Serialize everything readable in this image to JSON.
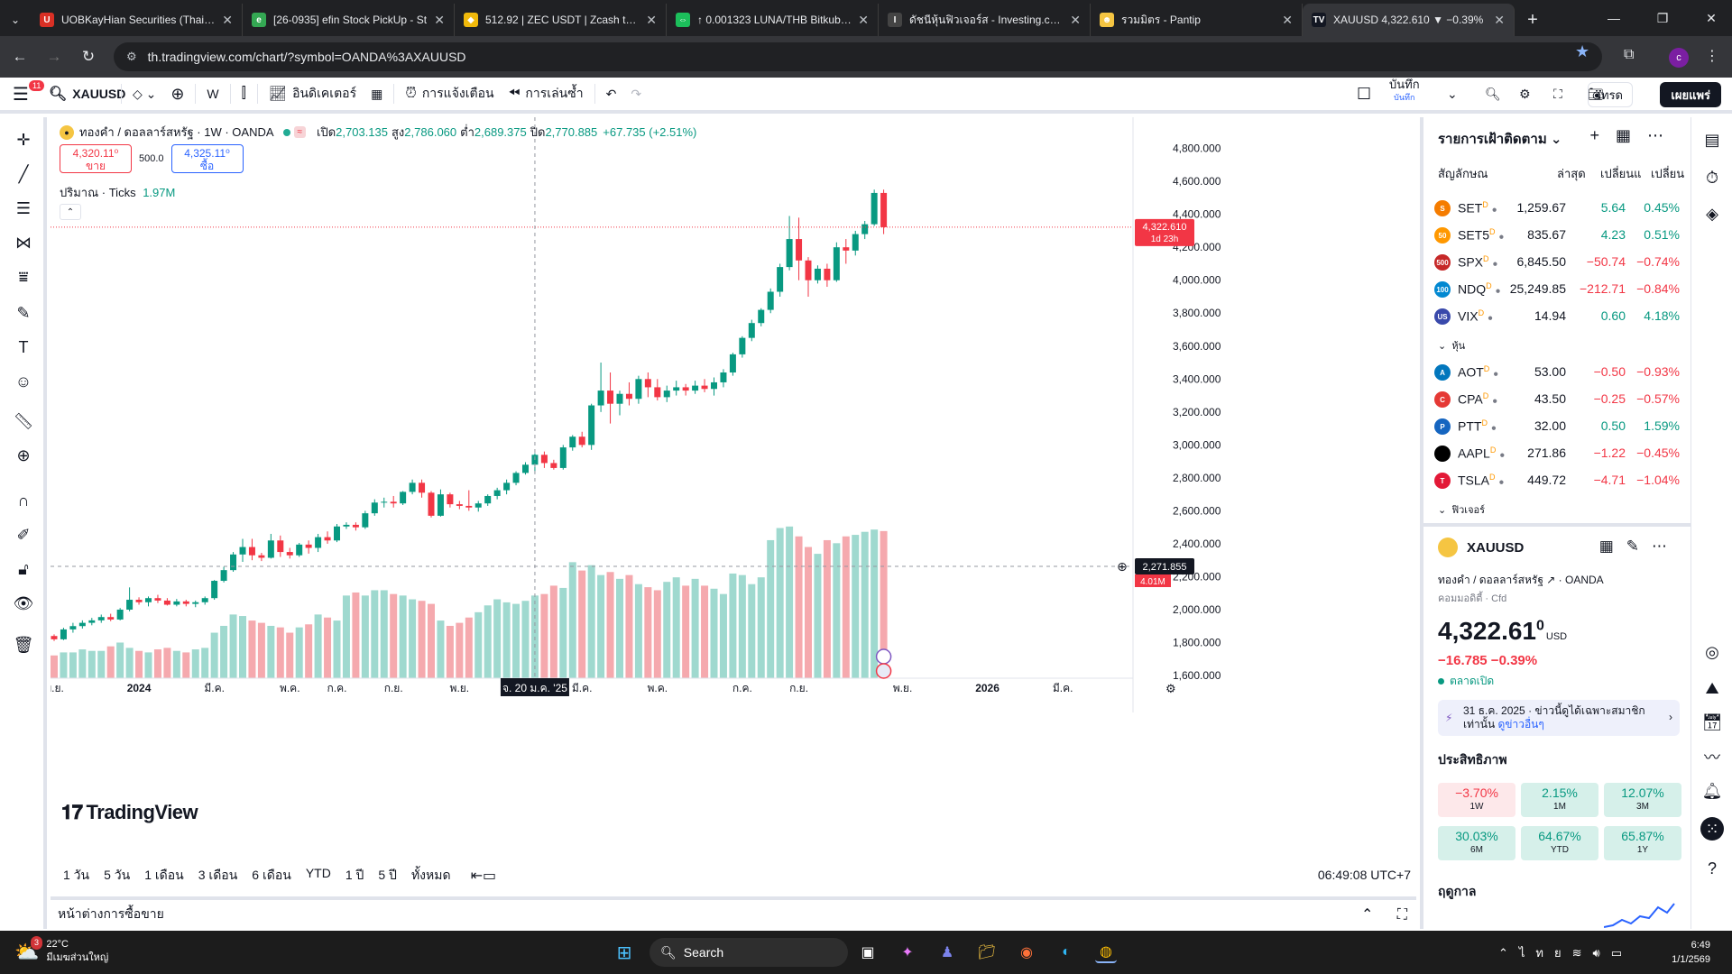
{
  "browser": {
    "tabs": [
      {
        "title": "UOBKayHian Securities (Thailan",
        "color": "#d93025",
        "icon": "uob-icon",
        "glyph": "U"
      },
      {
        "title": "[26-0935] efin Stock PickUp - St",
        "color": "#34a853",
        "icon": "efin-icon",
        "glyph": "e"
      },
      {
        "title": "512.92 | ZEC USDT | Zcash to US",
        "color": "#f0b90b",
        "icon": "binance-icon",
        "glyph": "◆"
      },
      {
        "title": "↑ 0.001323 LUNA/THB Bitkub.co",
        "color": "#1cbf5b",
        "icon": "bitkub-icon",
        "glyph": "⇔"
      },
      {
        "title": "ดัชนีหุ้นฟิวเจอร์ส - Investing.com",
        "color": "#444444",
        "icon": "investing-icon",
        "glyph": "I"
      },
      {
        "title": "รวมมิตร - Pantip",
        "color": "#f5c542",
        "icon": "pantip-icon",
        "glyph": "☻"
      },
      {
        "title": "XAUUSD 4,322.610 ▼ −0.39%",
        "color": "#131722",
        "icon": "tradingview-icon",
        "glyph": "TV",
        "active": true
      }
    ],
    "url": "th.tradingview.com/chart/?symbol=OANDA%3AXAUUSD",
    "profile_initial": "c"
  },
  "toolbar": {
    "menu_badge": "11",
    "symbol": "XAUUSD",
    "interval": "W",
    "indicators": "อินดิเคเตอร์",
    "alerts": "การแจ้งเตือน",
    "replay": "การเล่นซ้ำ",
    "save": "บันทึก",
    "save_sub": "บันทึก",
    "trade": "เทรด",
    "publish": "เผยแพร่"
  },
  "legend": {
    "title": "ทองคำ / ดอลลาร์สหรัฐ · 1W · OANDA",
    "open_label": "เปิด",
    "open": "2,703.135",
    "high_label": "สูง",
    "high": "2,786.060",
    "low_label": "ต่ำ",
    "low": "2,689.375",
    "close_label": "ปิด",
    "close": "2,770.885",
    "change": "+67.735 (+2.51%)",
    "sell_price": "4,320.11⁰",
    "sell_label": "ขาย",
    "qty": "500.0",
    "buy_price": "4,325.11⁰",
    "buy_label": "ซื้อ",
    "volume_label": "ปริมาณ · Ticks",
    "volume_value": "1.97M"
  },
  "price_tags": {
    "last": "4,322.610",
    "countdown": "1d 23h",
    "crosshair": "2,271.855",
    "volume": "4.01M"
  },
  "chart_data": {
    "type": "candlestick",
    "symbol": "XAUUSD",
    "interval": "1W",
    "ylim": [
      1540,
      4880
    ],
    "y_ticks": [
      1600,
      1800,
      2000,
      2200,
      2400,
      2600,
      2800,
      3000,
      3200,
      3400,
      3600,
      3800,
      4000,
      4200,
      4400,
      4600,
      4800
    ],
    "y_tick_labels": [
      "1,600.000",
      "1,800.000",
      "2,000.000",
      "2,200.000",
      "2,400.000",
      "2,600.000",
      "2,800.000",
      "3,000.000",
      "3,200.000",
      "3,400.000",
      "3,600.000",
      "3,800.000",
      "4,000.000",
      "4,200.000",
      "4,400.000",
      "4,600.000",
      "4,800.000"
    ],
    "x_labels": [
      {
        "label": "พ.ย.",
        "bar": 0
      },
      {
        "label": "2024",
        "bar": 9
      },
      {
        "label": "มี.ค.",
        "bar": 17
      },
      {
        "label": "พ.ค.",
        "bar": 25
      },
      {
        "label": "ก.ค.",
        "bar": 30
      },
      {
        "label": "ก.ย.",
        "bar": 36
      },
      {
        "label": "พ.ย.",
        "bar": 43
      },
      {
        "label": "จ. 20 ม.ค. '25",
        "bar": 51,
        "highlight": true
      },
      {
        "label": "มี.ค.",
        "bar": 56
      },
      {
        "label": "พ.ค.",
        "bar": 64
      },
      {
        "label": "ก.ค.",
        "bar": 73
      },
      {
        "label": "ก.ย.",
        "bar": 79
      },
      {
        "label": "พ.ย.",
        "bar": 90
      },
      {
        "label": "2026",
        "bar": 99
      },
      {
        "label": "มี.ค.",
        "bar": 107
      }
    ],
    "candles": [
      [
        1840,
        1850,
        1810,
        1820
      ],
      [
        1820,
        1890,
        1815,
        1880
      ],
      [
        1880,
        1920,
        1860,
        1900
      ],
      [
        1900,
        1935,
        1885,
        1920
      ],
      [
        1920,
        1950,
        1905,
        1935
      ],
      [
        1935,
        1970,
        1920,
        1955
      ],
      [
        1955,
        1975,
        1930,
        1940
      ],
      [
        1940,
        2010,
        1935,
        2000
      ],
      [
        2000,
        2135,
        1990,
        2060
      ],
      [
        2060,
        2075,
        2030,
        2045
      ],
      [
        2045,
        2080,
        2020,
        2070
      ],
      [
        2070,
        2090,
        2040,
        2055
      ],
      [
        2055,
        2070,
        2025,
        2030
      ],
      [
        2030,
        2065,
        2020,
        2050
      ],
      [
        2050,
        2060,
        2020,
        2035
      ],
      [
        2035,
        2055,
        2015,
        2045
      ],
      [
        2045,
        2080,
        2030,
        2070
      ],
      [
        2070,
        2180,
        2060,
        2175
      ],
      [
        2175,
        2260,
        2165,
        2240
      ],
      [
        2240,
        2350,
        2230,
        2335
      ],
      [
        2335,
        2430,
        2290,
        2380
      ],
      [
        2380,
        2430,
        2300,
        2330
      ],
      [
        2330,
        2345,
        2295,
        2315
      ],
      [
        2315,
        2460,
        2310,
        2420
      ],
      [
        2420,
        2450,
        2320,
        2350
      ],
      [
        2350,
        2375,
        2310,
        2330
      ],
      [
        2330,
        2405,
        2320,
        2395
      ],
      [
        2395,
        2420,
        2340,
        2375
      ],
      [
        2375,
        2460,
        2350,
        2440
      ],
      [
        2440,
        2475,
        2400,
        2420
      ],
      [
        2420,
        2520,
        2410,
        2505
      ],
      [
        2505,
        2530,
        2490,
        2515
      ],
      [
        2515,
        2530,
        2480,
        2500
      ],
      [
        2500,
        2600,
        2490,
        2585
      ],
      [
        2585,
        2670,
        2570,
        2650
      ],
      [
        2650,
        2680,
        2620,
        2655
      ],
      [
        2655,
        2690,
        2620,
        2645
      ],
      [
        2645,
        2720,
        2635,
        2715
      ],
      [
        2715,
        2790,
        2700,
        2770
      ],
      [
        2770,
        2790,
        2680,
        2710
      ],
      [
        2710,
        2720,
        2560,
        2570
      ],
      [
        2570,
        2730,
        2565,
        2700
      ],
      [
        2700,
        2710,
        2620,
        2640
      ],
      [
        2640,
        2660,
        2610,
        2630
      ],
      [
        2630,
        2725,
        2600,
        2620
      ],
      [
        2620,
        2660,
        2595,
        2645
      ],
      [
        2645,
        2700,
        2630,
        2690
      ],
      [
        2690,
        2740,
        2670,
        2725
      ],
      [
        2725,
        2790,
        2700,
        2770
      ],
      [
        2770,
        2840,
        2755,
        2830
      ],
      [
        2830,
        2895,
        2820,
        2880
      ],
      [
        2880,
        2950,
        2830,
        2940
      ],
      [
        2940,
        2960,
        2860,
        2890
      ],
      [
        2890,
        2910,
        2850,
        2860
      ],
      [
        2860,
        3000,
        2850,
        2985
      ],
      [
        2985,
        3060,
        2965,
        3050
      ],
      [
        3050,
        3080,
        2985,
        3000
      ],
      [
        3000,
        3250,
        2970,
        3240
      ],
      [
        3240,
        3500,
        3200,
        3330
      ],
      [
        3330,
        3440,
        3130,
        3250
      ],
      [
        3250,
        3330,
        3180,
        3310
      ],
      [
        3310,
        3380,
        3240,
        3280
      ],
      [
        3280,
        3420,
        3250,
        3400
      ],
      [
        3400,
        3440,
        3290,
        3350
      ],
      [
        3350,
        3400,
        3270,
        3290
      ],
      [
        3290,
        3360,
        3260,
        3330
      ],
      [
        3330,
        3390,
        3300,
        3350
      ],
      [
        3350,
        3370,
        3300,
        3330
      ],
      [
        3330,
        3390,
        3310,
        3360
      ],
      [
        3360,
        3400,
        3320,
        3340
      ],
      [
        3340,
        3410,
        3300,
        3380
      ],
      [
        3380,
        3460,
        3350,
        3440
      ],
      [
        3440,
        3560,
        3420,
        3550
      ],
      [
        3550,
        3660,
        3530,
        3650
      ],
      [
        3650,
        3760,
        3630,
        3740
      ],
      [
        3740,
        3830,
        3720,
        3820
      ],
      [
        3820,
        3950,
        3800,
        3930
      ],
      [
        3930,
        4100,
        3900,
        4080
      ],
      [
        4080,
        4390,
        4060,
        4250
      ],
      [
        4250,
        4380,
        4000,
        4120
      ],
      [
        4120,
        4140,
        3900,
        4000
      ],
      [
        4000,
        4090,
        3980,
        4070
      ],
      [
        4070,
        4100,
        3960,
        4000
      ],
      [
        4000,
        4230,
        3990,
        4200
      ],
      [
        4200,
        4250,
        4100,
        4180
      ],
      [
        4180,
        4300,
        4150,
        4280
      ],
      [
        4280,
        4360,
        4250,
        4340
      ],
      [
        4340,
        4550,
        4330,
        4530
      ],
      [
        4530,
        4550,
        4280,
        4322
      ]
    ],
    "volumes": [
      0.3,
      0.34,
      0.34,
      0.38,
      0.36,
      0.36,
      0.42,
      0.47,
      0.4,
      0.36,
      0.34,
      0.38,
      0.4,
      0.36,
      0.34,
      0.38,
      0.4,
      0.6,
      0.69,
      0.84,
      0.82,
      0.76,
      0.73,
      0.69,
      0.67,
      0.6,
      0.67,
      0.71,
      0.84,
      0.8,
      0.76,
      1.09,
      1.13,
      1.09,
      1.16,
      1.16,
      1.11,
      1.09,
      1.04,
      1.02,
      0.98,
      0.76,
      0.69,
      0.73,
      0.8,
      0.87,
      0.96,
      1.04,
      1.0,
      0.98,
      1.02,
      1.09,
      1.11,
      1.22,
      1.19,
      1.53,
      1.42,
      1.49,
      1.36,
      1.4,
      1.31,
      1.36,
      1.24,
      1.2,
      1.16,
      1.27,
      1.33,
      1.22,
      1.31,
      1.22,
      1.18,
      1.11,
      1.38,
      1.36,
      1.24,
      1.33,
      1.82,
      1.98,
      2.0,
      1.87,
      1.73,
      1.64,
      1.82,
      1.78,
      1.87,
      1.89,
      1.93,
      1.96,
      1.94
    ],
    "volume_max": 2.2
  },
  "ranges": [
    "1 วัน",
    "5 วัน",
    "1 เดือน",
    "3 เดือน",
    "6 เดือน",
    "YTD",
    "1 ปี",
    "5 ปี",
    "ทั้งหมด"
  ],
  "clock": "06:49:08 UTC+7",
  "trade_panel": "หน้าต่างการซื้อขาย",
  "watchlist": {
    "title": "รายการเฝ้าติดตาม",
    "col_symbol": "สัญลักษณ",
    "col_last": "ล่าสุด",
    "col_chg": "เปลี่ยนแ",
    "col_pct": "เปลี่ยน",
    "indices": [
      {
        "sym": "SET",
        "last": "1,259.67",
        "chg": "5.64",
        "pct": "0.45%",
        "color": "#f57c00",
        "glyph": "S",
        "up": true
      },
      {
        "sym": "SET5",
        "last": "835.67",
        "chg": "4.23",
        "pct": "0.51%",
        "color": "#ff9800",
        "glyph": "50",
        "up": true
      },
      {
        "sym": "SPX",
        "last": "6,845.50",
        "chg": "−50.74",
        "pct": "−0.74%",
        "color": "#c62828",
        "glyph": "500",
        "up": false
      },
      {
        "sym": "NDQ",
        "last": "25,249.85",
        "chg": "−212.71",
        "pct": "−0.84%",
        "color": "#0288d1",
        "glyph": "100",
        "up": false
      },
      {
        "sym": "VIX",
        "last": "14.94",
        "chg": "0.60",
        "pct": "4.18%",
        "color": "#3949ab",
        "glyph": "US",
        "up": true
      }
    ],
    "section_stocks": "หุ้น",
    "stocks": [
      {
        "sym": "AOT",
        "last": "53.00",
        "chg": "−0.50",
        "pct": "−0.93%",
        "color": "#0277bd",
        "glyph": "A",
        "up": false
      },
      {
        "sym": "CPA",
        "last": "43.50",
        "chg": "−0.25",
        "pct": "−0.57%",
        "color": "#e53935",
        "glyph": "C",
        "up": false
      },
      {
        "sym": "PTT",
        "last": "32.00",
        "chg": "0.50",
        "pct": "1.59%",
        "color": "#1565c0",
        "glyph": "P",
        "up": true
      },
      {
        "sym": "AAPL",
        "last": "271.86",
        "chg": "−1.22",
        "pct": "−0.45%",
        "color": "#000000",
        "glyph": "",
        "up": false
      },
      {
        "sym": "TSLA",
        "last": "449.72",
        "chg": "−4.71",
        "pct": "−1.04%",
        "color": "#e31937",
        "glyph": "T",
        "up": false
      }
    ],
    "section_futures": "ฟิวเจอร์"
  },
  "details": {
    "symbol": "XAUUSD",
    "name": "ทองคำ / ดอลลาร์สหรัฐ",
    "exchange": "OANDA",
    "type": "คอมมอดิตี้ · Cfd",
    "price": "4,322.61",
    "price_frac": "0",
    "currency": "USD",
    "change": "−16.785  −0.39%",
    "status": "ตลาดเปิด",
    "news_date": "31 ธ.ค. 2025",
    "news_text": "ข่าวนี้ดูได้เฉพาะสมาชิก",
    "news_text2": "เท่านั้น",
    "news_more": "ดูข่าวอื่นๆ",
    "perf_title": "ประสิทธิภาพ",
    "perf": [
      {
        "v": "−3.70%",
        "p": "1W",
        "neg": true
      },
      {
        "v": "2.15%",
        "p": "1M",
        "neg": false
      },
      {
        "v": "12.07%",
        "p": "3M",
        "neg": false
      },
      {
        "v": "30.03%",
        "p": "6M",
        "neg": false
      },
      {
        "v": "64.67%",
        "p": "YTD",
        "neg": false
      },
      {
        "v": "65.87%",
        "p": "1Y",
        "neg": false
      }
    ],
    "season_title": "ฤดูกาล"
  },
  "taskbar": {
    "temp": "22°C",
    "weather": "มีเมฆส่วนใหญ่",
    "weather_badge": "3",
    "search": "Search",
    "lang": "ไทย",
    "time": "6:49",
    "date": "1/1/2569"
  }
}
